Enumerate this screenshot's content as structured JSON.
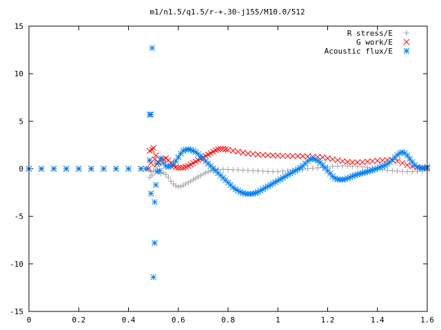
{
  "chart_data": {
    "type": "scatter",
    "title": "m1/n1.5/q1.5/r-+.30-j155/M10.0/512",
    "xlabel": "",
    "ylabel": "",
    "xlim": [
      0,
      1.6
    ],
    "ylim": [
      -15,
      15
    ],
    "x_ticks": [
      "0",
      "0.2",
      "0.4",
      "0.6",
      "0.8",
      "1",
      "1.2",
      "1.4",
      "1.6"
    ],
    "y_ticks": [
      "15",
      "10",
      "5",
      "0",
      "-5",
      "-10",
      "-15"
    ],
    "grid": false,
    "legend_position": "top-right",
    "series": [
      {
        "name": "R stress/E",
        "marker": "plus",
        "color": "#a0a0a0",
        "points": [
          [
            0.0,
            0
          ],
          [
            0.05,
            0
          ],
          [
            0.1,
            0
          ],
          [
            0.15,
            0
          ],
          [
            0.2,
            0
          ],
          [
            0.25,
            0
          ],
          [
            0.3,
            0
          ],
          [
            0.35,
            0
          ],
          [
            0.4,
            0
          ],
          [
            0.45,
            0
          ],
          [
            0.48,
            0
          ],
          [
            0.485,
            -0.9
          ],
          [
            0.49,
            -0.3
          ],
          [
            0.495,
            -0.7
          ],
          [
            0.5,
            -0.2
          ],
          [
            0.505,
            0.5
          ],
          [
            0.51,
            0.2
          ],
          [
            0.52,
            -0.3
          ],
          [
            0.53,
            -0.5
          ],
          [
            0.54,
            -0.4
          ],
          [
            0.55,
            -0.6
          ],
          [
            0.56,
            -0.9
          ],
          [
            0.57,
            -1.3
          ],
          [
            0.58,
            -1.6
          ],
          [
            0.59,
            -1.8
          ],
          [
            0.6,
            -1.9
          ],
          [
            0.61,
            -1.85
          ],
          [
            0.62,
            -1.75
          ],
          [
            0.63,
            -1.6
          ],
          [
            0.64,
            -1.45
          ],
          [
            0.65,
            -1.3
          ],
          [
            0.66,
            -1.15
          ],
          [
            0.67,
            -1.0
          ],
          [
            0.68,
            -0.85
          ],
          [
            0.69,
            -0.7
          ],
          [
            0.7,
            -0.55
          ],
          [
            0.71,
            -0.42
          ],
          [
            0.72,
            -0.32
          ],
          [
            0.73,
            -0.22
          ],
          [
            0.74,
            -0.15
          ],
          [
            0.75,
            -0.1
          ],
          [
            0.76,
            -0.06
          ],
          [
            0.78,
            -0.05
          ],
          [
            0.8,
            -0.07
          ],
          [
            0.82,
            -0.1
          ],
          [
            0.84,
            -0.12
          ],
          [
            0.86,
            -0.15
          ],
          [
            0.88,
            -0.18
          ],
          [
            0.9,
            -0.2
          ],
          [
            0.92,
            -0.22
          ],
          [
            0.94,
            -0.25
          ],
          [
            0.96,
            -0.28
          ],
          [
            0.98,
            -0.3
          ],
          [
            1.0,
            -0.3
          ],
          [
            1.02,
            -0.25
          ],
          [
            1.04,
            -0.2
          ],
          [
            1.06,
            -0.15
          ],
          [
            1.08,
            -0.1
          ],
          [
            1.1,
            -0.05
          ],
          [
            1.12,
            0.0
          ],
          [
            1.14,
            0.05
          ],
          [
            1.16,
            0.1
          ],
          [
            1.18,
            0.15
          ],
          [
            1.2,
            0.2
          ],
          [
            1.22,
            0.25
          ],
          [
            1.24,
            0.28
          ],
          [
            1.26,
            0.3
          ],
          [
            1.28,
            0.3
          ],
          [
            1.3,
            0.28
          ],
          [
            1.32,
            0.25
          ],
          [
            1.34,
            0.2
          ],
          [
            1.36,
            0.15
          ],
          [
            1.38,
            0.08
          ],
          [
            1.4,
            0.0
          ],
          [
            1.42,
            -0.08
          ],
          [
            1.44,
            -0.15
          ],
          [
            1.46,
            -0.2
          ],
          [
            1.48,
            -0.25
          ],
          [
            1.5,
            -0.28
          ],
          [
            1.52,
            -0.3
          ],
          [
            1.54,
            -0.3
          ],
          [
            1.56,
            -0.28
          ],
          [
            1.58,
            -0.25
          ],
          [
            1.6,
            -0.22
          ]
        ]
      },
      {
        "name": "G work/E",
        "marker": "cross",
        "color": "#ff0000",
        "points": [
          [
            0.0,
            0
          ],
          [
            0.05,
            0
          ],
          [
            0.1,
            0
          ],
          [
            0.15,
            0
          ],
          [
            0.2,
            0
          ],
          [
            0.25,
            0
          ],
          [
            0.3,
            0
          ],
          [
            0.35,
            0
          ],
          [
            0.4,
            0
          ],
          [
            0.45,
            0
          ],
          [
            0.48,
            0
          ],
          [
            0.485,
            1.9
          ],
          [
            0.49,
            0.6
          ],
          [
            0.495,
            2.0
          ],
          [
            0.5,
            2.2
          ],
          [
            0.505,
            1.0
          ],
          [
            0.51,
            1.4
          ],
          [
            0.515,
            0.5
          ],
          [
            0.52,
            0.7
          ],
          [
            0.53,
            0.9
          ],
          [
            0.54,
            1.0
          ],
          [
            0.55,
            1.1
          ],
          [
            0.56,
            0.9
          ],
          [
            0.57,
            0.6
          ],
          [
            0.58,
            0.3
          ],
          [
            0.59,
            0.15
          ],
          [
            0.6,
            0.1
          ],
          [
            0.61,
            0.1
          ],
          [
            0.62,
            0.12
          ],
          [
            0.63,
            0.2
          ],
          [
            0.64,
            0.3
          ],
          [
            0.65,
            0.45
          ],
          [
            0.66,
            0.6
          ],
          [
            0.67,
            0.75
          ],
          [
            0.68,
            0.9
          ],
          [
            0.69,
            1.05
          ],
          [
            0.7,
            1.2
          ],
          [
            0.71,
            1.35
          ],
          [
            0.72,
            1.5
          ],
          [
            0.73,
            1.65
          ],
          [
            0.74,
            1.8
          ],
          [
            0.75,
            1.95
          ],
          [
            0.76,
            2.05
          ],
          [
            0.77,
            2.1
          ],
          [
            0.78,
            2.1
          ],
          [
            0.79,
            2.05
          ],
          [
            0.8,
            2.0
          ],
          [
            0.82,
            1.9
          ],
          [
            0.84,
            1.8
          ],
          [
            0.86,
            1.7
          ],
          [
            0.88,
            1.6
          ],
          [
            0.9,
            1.55
          ],
          [
            0.92,
            1.5
          ],
          [
            0.94,
            1.45
          ],
          [
            0.96,
            1.42
          ],
          [
            0.98,
            1.4
          ],
          [
            1.0,
            1.38
          ],
          [
            1.02,
            1.36
          ],
          [
            1.04,
            1.35
          ],
          [
            1.06,
            1.34
          ],
          [
            1.08,
            1.33
          ],
          [
            1.1,
            1.32
          ],
          [
            1.12,
            1.3
          ],
          [
            1.14,
            1.28
          ],
          [
            1.16,
            1.25
          ],
          [
            1.18,
            1.2
          ],
          [
            1.2,
            1.1
          ],
          [
            1.22,
            1.0
          ],
          [
            1.24,
            0.9
          ],
          [
            1.26,
            0.8
          ],
          [
            1.28,
            0.72
          ],
          [
            1.3,
            0.68
          ],
          [
            1.32,
            0.68
          ],
          [
            1.34,
            0.7
          ],
          [
            1.36,
            0.75
          ],
          [
            1.38,
            0.8
          ],
          [
            1.4,
            0.85
          ],
          [
            1.42,
            0.9
          ],
          [
            1.44,
            0.92
          ],
          [
            1.46,
            0.9
          ],
          [
            1.48,
            0.8
          ],
          [
            1.5,
            0.6
          ],
          [
            1.52,
            0.4
          ],
          [
            1.54,
            0.25
          ],
          [
            1.56,
            0.15
          ],
          [
            1.58,
            0.1
          ],
          [
            1.6,
            0.05
          ]
        ]
      },
      {
        "name": "Acoustic flux/E",
        "marker": "star",
        "color": "#0080f0",
        "points": [
          [
            0.0,
            0
          ],
          [
            0.05,
            0
          ],
          [
            0.1,
            0
          ],
          [
            0.15,
            0
          ],
          [
            0.2,
            0
          ],
          [
            0.25,
            0
          ],
          [
            0.3,
            0
          ],
          [
            0.35,
            0
          ],
          [
            0.4,
            0
          ],
          [
            0.45,
            0
          ],
          [
            0.47,
            0
          ],
          [
            0.485,
            5.7
          ],
          [
            0.49,
            5.7
          ],
          [
            0.495,
            12.7
          ],
          [
            0.49,
            -2.6
          ],
          [
            0.5,
            -11.4
          ],
          [
            0.505,
            -7.8
          ],
          [
            0.505,
            -3.5
          ],
          [
            0.51,
            -1.7
          ],
          [
            0.515,
            -0.3
          ],
          [
            0.485,
            0.9
          ],
          [
            0.52,
            0.6
          ],
          [
            0.525,
            -0.2
          ],
          [
            0.53,
            1.1
          ],
          [
            0.54,
            0.6
          ],
          [
            0.55,
            0.3
          ],
          [
            0.56,
            0.2
          ],
          [
            0.57,
            0.3
          ],
          [
            0.58,
            0.5
          ],
          [
            0.59,
            0.8
          ],
          [
            0.6,
            1.2
          ],
          [
            0.61,
            1.6
          ],
          [
            0.62,
            1.9
          ],
          [
            0.63,
            2.0
          ],
          [
            0.64,
            2.05
          ],
          [
            0.65,
            2.0
          ],
          [
            0.66,
            1.9
          ],
          [
            0.67,
            1.75
          ],
          [
            0.68,
            1.55
          ],
          [
            0.69,
            1.3
          ],
          [
            0.7,
            1.05
          ],
          [
            0.71,
            0.8
          ],
          [
            0.72,
            0.55
          ],
          [
            0.73,
            0.3
          ],
          [
            0.74,
            0.05
          ],
          [
            0.75,
            -0.2
          ],
          [
            0.76,
            -0.45
          ],
          [
            0.77,
            -0.7
          ],
          [
            0.78,
            -0.95
          ],
          [
            0.79,
            -1.2
          ],
          [
            0.8,
            -1.45
          ],
          [
            0.81,
            -1.7
          ],
          [
            0.82,
            -1.95
          ],
          [
            0.83,
            -2.15
          ],
          [
            0.84,
            -2.3
          ],
          [
            0.85,
            -2.45
          ],
          [
            0.86,
            -2.55
          ],
          [
            0.87,
            -2.62
          ],
          [
            0.88,
            -2.65
          ],
          [
            0.89,
            -2.65
          ],
          [
            0.9,
            -2.62
          ],
          [
            0.91,
            -2.55
          ],
          [
            0.92,
            -2.45
          ],
          [
            0.93,
            -2.3
          ],
          [
            0.94,
            -2.15
          ],
          [
            0.95,
            -2.0
          ],
          [
            0.96,
            -1.85
          ],
          [
            0.97,
            -1.7
          ],
          [
            0.98,
            -1.55
          ],
          [
            0.99,
            -1.4
          ],
          [
            1.0,
            -1.25
          ],
          [
            1.01,
            -1.1
          ],
          [
            1.02,
            -0.95
          ],
          [
            1.03,
            -0.8
          ],
          [
            1.04,
            -0.65
          ],
          [
            1.05,
            -0.5
          ],
          [
            1.06,
            -0.35
          ],
          [
            1.07,
            -0.2
          ],
          [
            1.08,
            -0.05
          ],
          [
            1.09,
            0.1
          ],
          [
            1.1,
            0.3
          ],
          [
            1.11,
            0.55
          ],
          [
            1.12,
            0.8
          ],
          [
            1.13,
            1.0
          ],
          [
            1.14,
            1.05
          ],
          [
            1.15,
            1.0
          ],
          [
            1.16,
            0.85
          ],
          [
            1.17,
            0.65
          ],
          [
            1.18,
            0.4
          ],
          [
            1.19,
            0.1
          ],
          [
            1.2,
            -0.2
          ],
          [
            1.21,
            -0.5
          ],
          [
            1.22,
            -0.8
          ],
          [
            1.23,
            -1.0
          ],
          [
            1.24,
            -1.1
          ],
          [
            1.25,
            -1.15
          ],
          [
            1.26,
            -1.15
          ],
          [
            1.27,
            -1.1
          ],
          [
            1.28,
            -1.0
          ],
          [
            1.29,
            -0.9
          ],
          [
            1.3,
            -0.78
          ],
          [
            1.31,
            -0.68
          ],
          [
            1.32,
            -0.6
          ],
          [
            1.33,
            -0.52
          ],
          [
            1.34,
            -0.45
          ],
          [
            1.35,
            -0.38
          ],
          [
            1.36,
            -0.3
          ],
          [
            1.37,
            -0.22
          ],
          [
            1.38,
            -0.15
          ],
          [
            1.39,
            -0.05
          ],
          [
            1.4,
            0.05
          ],
          [
            1.41,
            0.15
          ],
          [
            1.42,
            0.25
          ],
          [
            1.43,
            0.35
          ],
          [
            1.44,
            0.5
          ],
          [
            1.45,
            0.7
          ],
          [
            1.46,
            0.95
          ],
          [
            1.47,
            1.2
          ],
          [
            1.48,
            1.45
          ],
          [
            1.49,
            1.65
          ],
          [
            1.5,
            1.75
          ],
          [
            1.51,
            1.65
          ],
          [
            1.52,
            1.4
          ],
          [
            1.53,
            1.05
          ],
          [
            1.54,
            0.7
          ],
          [
            1.55,
            0.4
          ],
          [
            1.56,
            0.2
          ],
          [
            1.57,
            0.1
          ],
          [
            1.58,
            0.05
          ],
          [
            1.59,
            0.1
          ],
          [
            1.6,
            0.2
          ]
        ]
      }
    ]
  }
}
